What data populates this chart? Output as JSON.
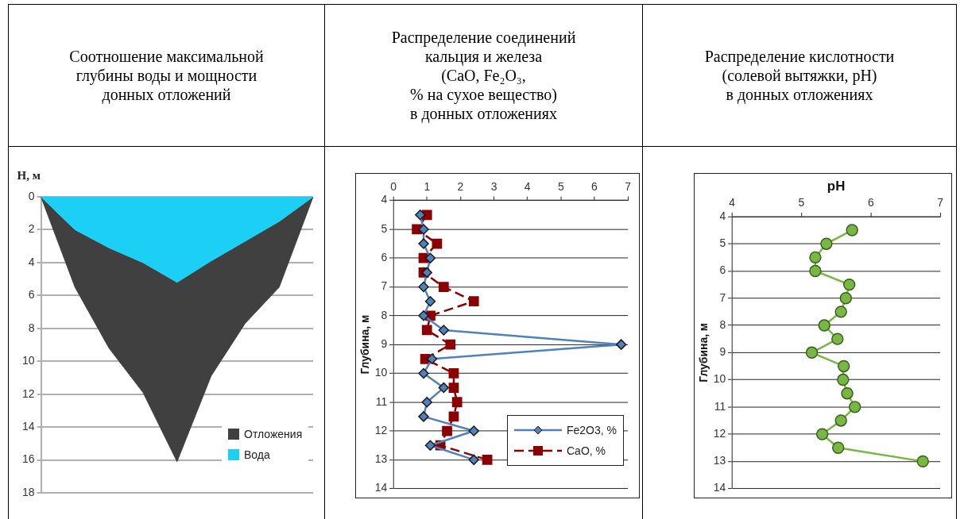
{
  "chart_data": [
    {
      "type": "area",
      "title": "Соотношение максимальной\nглубины воды и мощности\nдонных отложений",
      "ylabel": "H, м",
      "categories": [
        null,
        null,
        null,
        null,
        null,
        null,
        null,
        null,
        null
      ],
      "stacked": true,
      "series": [
        {
          "name": "Вода",
          "color": "#1ccff5",
          "values": [
            0,
            2,
            3.1,
            4,
            5.2,
            3.9,
            2.7,
            1.5,
            0
          ]
        },
        {
          "name": "Отложения",
          "color": "#404040",
          "values": [
            0,
            3.5,
            6.1,
            7.9,
            10.9,
            7.0,
            5.0,
            4.0,
            0
          ]
        }
      ],
      "ylim": [
        18,
        0
      ],
      "yticks": [
        0,
        2,
        4,
        6,
        8,
        10,
        12,
        14,
        16,
        18
      ],
      "grid": "y",
      "legend": "bottom right",
      "tick_labels": "y"
    },
    {
      "type": "line",
      "title": "Распределение соединений\nкальция и железа\n(CaO, Fe₂O₃,\n% на сухое вещество)\nв донных отложениях",
      "ylabel": "Глубина, м",
      "series": [
        {
          "name": "Fe2O3, %",
          "color": "#4f81bd",
          "marker": "diamond",
          "line_style": "solid",
          "x": [
            0.8,
            0.9,
            0.9,
            1.1,
            1.0,
            0.9,
            1.1,
            0.9,
            1.5,
            6.8,
            1.15,
            0.9,
            1.5,
            1.0,
            0.9,
            2.4,
            1.1,
            2.4
          ],
          "values": [
            4.5,
            5,
            5.5,
            6,
            6.5,
            7,
            7.5,
            8,
            8.5,
            9,
            9.5,
            10,
            10.5,
            11,
            11.5,
            12,
            12.5,
            13
          ]
        },
        {
          "name": "CaO, %",
          "color": "#8b0000",
          "marker": "square",
          "line_style": "dashed",
          "x": [
            1.0,
            0.7,
            1.3,
            0.9,
            0.9,
            1.5,
            2.4,
            1.1,
            1.0,
            1.7,
            0.95,
            1.8,
            1.8,
            1.9,
            1.8,
            1.6,
            1.4,
            2.8
          ],
          "values": [
            4.5,
            5,
            5.5,
            6,
            6.5,
            7,
            7.5,
            8,
            8.5,
            9,
            9.5,
            10,
            10.5,
            11,
            11.5,
            12,
            12.5,
            13
          ]
        }
      ],
      "xlim": [
        0,
        7
      ],
      "xticks": [
        0,
        1,
        2,
        3,
        4,
        5,
        6,
        7
      ],
      "ylim": [
        14,
        4
      ],
      "yticks": [
        4,
        5,
        6,
        7,
        8,
        9,
        10,
        11,
        12,
        13,
        14
      ],
      "grid": "y",
      "legend": "bottom right"
    },
    {
      "type": "line",
      "title": "Распределение кислотности\n(солевой вытяжки, pH)\nв донных отложениях",
      "xlabel": "pH",
      "ylabel": "Глубина, м",
      "series": [
        {
          "color": "#77b843",
          "x": [
            5.73,
            5.36,
            5.2,
            5.2,
            5.69,
            5.64,
            5.57,
            5.33,
            5.52,
            5.15,
            5.61,
            5.6,
            5.66,
            5.77,
            5.57,
            5.3,
            5.53,
            6.75
          ],
          "values": [
            4.5,
            5,
            5.5,
            6,
            6.5,
            7,
            7.5,
            8,
            8.5,
            9,
            9.5,
            10,
            10.5,
            11,
            11.5,
            12,
            12.5,
            13
          ]
        }
      ],
      "marker": "circle",
      "line_style": "solid",
      "xlim": [
        4,
        7
      ],
      "xticks": [
        4,
        5,
        6,
        7
      ],
      "ylim": [
        14,
        4
      ],
      "yticks": [
        4,
        5,
        6,
        7,
        8,
        9,
        10,
        11,
        12,
        13,
        14
      ],
      "grid": "y"
    }
  ]
}
